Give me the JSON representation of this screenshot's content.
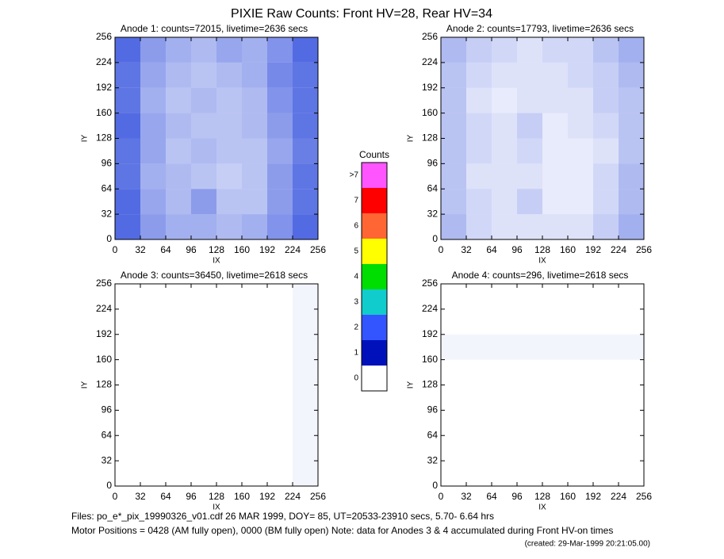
{
  "title": "PIXIE Raw Counts:  Front HV=28, Rear HV=34",
  "chart_data": [
    {
      "type": "heatmap",
      "title": "Anode 1: counts=72015, livetime=2636 secs",
      "xlabel": "IX",
      "ylabel": "IY",
      "color": "#1a3ad8",
      "xlim": [
        0,
        256
      ],
      "ylim": [
        0,
        256
      ],
      "xticks": [
        0,
        32,
        64,
        96,
        128,
        160,
        192,
        224,
        256
      ],
      "yticks": [
        0,
        32,
        64,
        96,
        128,
        160,
        192,
        224,
        256
      ],
      "xbins": [
        0,
        32,
        64,
        96,
        128,
        160,
        192,
        224,
        256
      ],
      "ybins": [
        0,
        32,
        64,
        96,
        128,
        160,
        192,
        224,
        256
      ],
      "z": [
        [
          0.75,
          0.5,
          0.4,
          0.4,
          0.35,
          0.4,
          0.55,
          0.75
        ],
        [
          0.75,
          0.45,
          0.35,
          0.5,
          0.3,
          0.3,
          0.5,
          0.7
        ],
        [
          0.7,
          0.4,
          0.35,
          0.3,
          0.25,
          0.3,
          0.5,
          0.7
        ],
        [
          0.7,
          0.45,
          0.3,
          0.35,
          0.3,
          0.3,
          0.45,
          0.65
        ],
        [
          0.75,
          0.45,
          0.35,
          0.3,
          0.3,
          0.35,
          0.5,
          0.7
        ],
        [
          0.7,
          0.4,
          0.3,
          0.35,
          0.3,
          0.35,
          0.55,
          0.7
        ],
        [
          0.7,
          0.45,
          0.35,
          0.3,
          0.35,
          0.4,
          0.6,
          0.7
        ],
        [
          0.75,
          0.5,
          0.4,
          0.35,
          0.45,
          0.4,
          0.55,
          0.75
        ]
      ]
    },
    {
      "type": "heatmap",
      "title": "Anode 2: counts=17793, livetime=2636 secs",
      "xlabel": "IX",
      "ylabel": "IY",
      "color": "#1a3ad8",
      "xlim": [
        0,
        256
      ],
      "ylim": [
        0,
        256
      ],
      "xticks": [
        0,
        32,
        64,
        96,
        128,
        160,
        192,
        224,
        256
      ],
      "yticks": [
        0,
        32,
        64,
        96,
        128,
        160,
        192,
        224,
        256
      ],
      "xbins": [
        0,
        32,
        64,
        96,
        128,
        160,
        192,
        224,
        256
      ],
      "ybins": [
        0,
        32,
        64,
        96,
        128,
        160,
        192,
        224,
        256
      ],
      "z": [
        [
          0.35,
          0.2,
          0.15,
          0.15,
          0.15,
          0.15,
          0.25,
          0.4
        ],
        [
          0.3,
          0.2,
          0.15,
          0.25,
          0.1,
          0.1,
          0.2,
          0.35
        ],
        [
          0.3,
          0.15,
          0.15,
          0.15,
          0.1,
          0.1,
          0.2,
          0.35
        ],
        [
          0.3,
          0.2,
          0.15,
          0.2,
          0.1,
          0.1,
          0.15,
          0.3
        ],
        [
          0.3,
          0.2,
          0.15,
          0.25,
          0.1,
          0.15,
          0.2,
          0.3
        ],
        [
          0.3,
          0.15,
          0.1,
          0.15,
          0.15,
          0.15,
          0.25,
          0.3
        ],
        [
          0.3,
          0.2,
          0.15,
          0.15,
          0.15,
          0.2,
          0.25,
          0.35
        ],
        [
          0.35,
          0.25,
          0.2,
          0.15,
          0.2,
          0.2,
          0.3,
          0.4
        ]
      ]
    },
    {
      "type": "heatmap",
      "title": "Anode 3: counts=36450, livetime=2618 secs",
      "xlabel": "IX",
      "ylabel": "IY",
      "color": "#1a3ad8",
      "xlim": [
        0,
        256
      ],
      "ylim": [
        0,
        256
      ],
      "xticks": [
        0,
        32,
        64,
        96,
        128,
        160,
        192,
        224,
        256
      ],
      "yticks": [
        0,
        32,
        64,
        96,
        128,
        160,
        192,
        224,
        256
      ],
      "xbins": [
        0,
        32,
        64,
        96,
        128,
        160,
        192,
        224,
        256
      ],
      "ybins": [
        0,
        32,
        64,
        96,
        128,
        160,
        192,
        224,
        256
      ],
      "z": [
        [
          0,
          0,
          0,
          0,
          0,
          0,
          0,
          0.05
        ],
        [
          0,
          0,
          0,
          0,
          0,
          0,
          0,
          0.05
        ],
        [
          0,
          0,
          0,
          0,
          0,
          0,
          0,
          0.05
        ],
        [
          0,
          0,
          0,
          0,
          0,
          0,
          0,
          0.05
        ],
        [
          0,
          0,
          0,
          0,
          0,
          0,
          0,
          0.05
        ],
        [
          0,
          0,
          0,
          0,
          0,
          0,
          0,
          0.05
        ],
        [
          0,
          0,
          0,
          0,
          0,
          0,
          0,
          0.05
        ],
        [
          0,
          0,
          0,
          0,
          0,
          0,
          0,
          0.05
        ]
      ]
    },
    {
      "type": "heatmap",
      "title": "Anode 4: counts=296, livetime=2618 secs",
      "xlabel": "IX",
      "ylabel": "IY",
      "color": "#1a3ad8",
      "xlim": [
        0,
        256
      ],
      "ylim": [
        0,
        256
      ],
      "xticks": [
        0,
        32,
        64,
        96,
        128,
        160,
        192,
        224,
        256
      ],
      "yticks": [
        0,
        32,
        64,
        96,
        128,
        160,
        192,
        224,
        256
      ],
      "xbins": [
        0,
        32,
        64,
        96,
        128,
        160,
        192,
        224,
        256
      ],
      "ybins": [
        0,
        32,
        64,
        96,
        128,
        160,
        192,
        224,
        256
      ],
      "z": [
        [
          0,
          0,
          0,
          0,
          0,
          0,
          0,
          0
        ],
        [
          0,
          0,
          0,
          0,
          0,
          0,
          0,
          0
        ],
        [
          0,
          0,
          0,
          0,
          0,
          0,
          0,
          0
        ],
        [
          0,
          0,
          0,
          0,
          0,
          0,
          0,
          0
        ],
        [
          0,
          0,
          0,
          0,
          0,
          0,
          0,
          0
        ],
        [
          0.05,
          0.05,
          0.05,
          0.05,
          0.05,
          0.05,
          0.05,
          0.05
        ],
        [
          0,
          0,
          0,
          0,
          0,
          0,
          0,
          0
        ],
        [
          0,
          0,
          0,
          0,
          0,
          0,
          0,
          0
        ]
      ]
    }
  ],
  "colorbar": {
    "title": "Counts",
    "labels": [
      0,
      1,
      2,
      3,
      4,
      5,
      6,
      7,
      ">7"
    ],
    "colors": [
      "#ffffff",
      "#0011bb",
      "#3355ff",
      "#11cccc",
      "#00dd00",
      "#ffff00",
      "#ff6633",
      "#ff0000",
      "#ff55ff"
    ]
  },
  "footer": [
    "Files: po_e*_pix_19990326_v01.cdf    26 MAR 1999, DOY= 85, UT=20533-23910 secs,  5.70- 6.64 hrs",
    "Motor Positions = 0428 (AM fully open), 0000 (BM fully open)    Note: data for Anodes 3 & 4 accumulated during Front HV-on times",
    "(created: 29-Mar-1999 20:21:05.00)"
  ]
}
